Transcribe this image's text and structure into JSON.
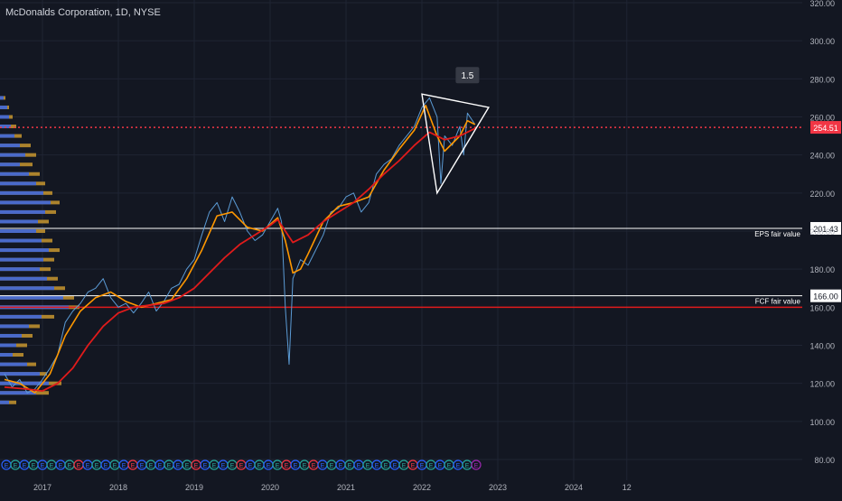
{
  "title": "McDonalds Corporation, 1D, NYSE",
  "colors": {
    "background": "#131722",
    "grid": "#1f2433",
    "axis_text": "#b2b5be",
    "price_series": "#5b9bd5",
    "ma_fast": "#ff9800",
    "ma_slow": "#e01b1b",
    "current_price": "#f23645",
    "ref_line": "#ffffff",
    "fcf_line": "#e01b1b",
    "volume_profile_blue": "#2962ff",
    "volume_profile_orange": "#c8962f"
  },
  "chart_data": {
    "type": "line",
    "ylim": [
      70,
      325
    ],
    "y_ticks": [
      "80.00",
      "100.00",
      "120.00",
      "140.00",
      "160.00",
      "180.00",
      "200.00",
      "220.00",
      "240.00",
      "260.00",
      "280.00",
      "300.00",
      "320.00"
    ],
    "x_ticks": [
      "2017",
      "2018",
      "2019",
      "2020",
      "2021",
      "2022",
      "2023",
      "2024",
      "12"
    ],
    "series": [
      {
        "id": "price",
        "x": [
          2016.5,
          2016.6,
          2016.7,
          2016.8,
          2016.9,
          2017.0,
          2017.1,
          2017.2,
          2017.3,
          2017.4,
          2017.5,
          2017.6,
          2017.7,
          2017.8,
          2017.9,
          2018.0,
          2018.1,
          2018.2,
          2018.3,
          2018.4,
          2018.5,
          2018.6,
          2018.7,
          2018.8,
          2018.9,
          2019.0,
          2019.1,
          2019.2,
          2019.3,
          2019.4,
          2019.5,
          2019.6,
          2019.7,
          2019.8,
          2019.9,
          2020.0,
          2020.1,
          2020.15,
          2020.2,
          2020.25,
          2020.3,
          2020.4,
          2020.5,
          2020.6,
          2020.7,
          2020.8,
          2020.9,
          2021.0,
          2021.1,
          2021.2,
          2021.3,
          2021.4,
          2021.5,
          2021.6,
          2021.7,
          2021.8,
          2021.9,
          2022.0,
          2022.1,
          2022.2,
          2022.25,
          2022.3,
          2022.4,
          2022.5,
          2022.55,
          2022.6,
          2022.7
        ],
        "y": [
          125,
          118,
          122,
          115,
          117,
          122,
          128,
          135,
          152,
          158,
          162,
          168,
          170,
          175,
          165,
          160,
          162,
          157,
          162,
          168,
          158,
          163,
          170,
          172,
          180,
          185,
          198,
          210,
          215,
          205,
          218,
          210,
          200,
          195,
          198,
          205,
          212,
          205,
          160,
          130,
          175,
          185,
          182,
          190,
          198,
          210,
          212,
          218,
          220,
          210,
          215,
          230,
          235,
          238,
          245,
          250,
          255,
          265,
          270,
          260,
          225,
          250,
          245,
          255,
          240,
          262,
          256
        ]
      },
      {
        "id": "ma_fast",
        "x": [
          2016.5,
          2016.7,
          2016.9,
          2017.1,
          2017.3,
          2017.5,
          2017.7,
          2017.9,
          2018.1,
          2018.3,
          2018.5,
          2018.7,
          2018.9,
          2019.1,
          2019.3,
          2019.5,
          2019.7,
          2019.9,
          2020.1,
          2020.2,
          2020.3,
          2020.4,
          2020.5,
          2020.7,
          2020.9,
          2021.1,
          2021.3,
          2021.5,
          2021.7,
          2021.9,
          2022.05,
          2022.2,
          2022.3,
          2022.4,
          2022.5,
          2022.6,
          2022.7
        ],
        "y": [
          122,
          120,
          115,
          125,
          145,
          158,
          165,
          168,
          163,
          160,
          162,
          164,
          175,
          190,
          208,
          210,
          202,
          200,
          207,
          195,
          178,
          180,
          188,
          205,
          213,
          215,
          218,
          232,
          243,
          253,
          266,
          250,
          242,
          246,
          250,
          258,
          256
        ]
      },
      {
        "id": "ma_slow",
        "x": [
          2016.5,
          2016.8,
          2017.0,
          2017.2,
          2017.4,
          2017.6,
          2017.8,
          2018.0,
          2018.2,
          2018.4,
          2018.6,
          2018.8,
          2019.0,
          2019.2,
          2019.4,
          2019.6,
          2019.8,
          2020.0,
          2020.1,
          2020.3,
          2020.5,
          2020.7,
          2020.9,
          2021.1,
          2021.3,
          2021.5,
          2021.7,
          2021.9,
          2022.1,
          2022.3,
          2022.5,
          2022.7
        ],
        "y": [
          118,
          117,
          116,
          120,
          128,
          140,
          150,
          157,
          160,
          161,
          162,
          165,
          170,
          178,
          186,
          193,
          198,
          203,
          206,
          194,
          198,
          205,
          210,
          215,
          222,
          230,
          237,
          245,
          252,
          248,
          250,
          254
        ]
      }
    ],
    "reference_lines": [
      {
        "value": 201.43,
        "label": "201.43",
        "annotation": "EPS fair value"
      },
      {
        "value": 166.0,
        "label": "166.00",
        "annotation": "FCF fair value"
      },
      {
        "value": 160,
        "label": "",
        "annotation": ""
      }
    ],
    "current_price": {
      "value": 254.51,
      "label": "254.51"
    },
    "triangle": {
      "points": [
        [
          2022.0,
          272
        ],
        [
          2022.88,
          265
        ],
        [
          2022.2,
          220
        ]
      ],
      "label": "1.5"
    }
  },
  "volume_profile": {
    "bins": [
      [
        270,
        6,
        4
      ],
      [
        265,
        10,
        8
      ],
      [
        260,
        14,
        10
      ],
      [
        255,
        18,
        12
      ],
      [
        250,
        24,
        16
      ],
      [
        245,
        34,
        22
      ],
      [
        240,
        40,
        28
      ],
      [
        235,
        36,
        22
      ],
      [
        230,
        44,
        32
      ],
      [
        225,
        50,
        40
      ],
      [
        220,
        58,
        48
      ],
      [
        215,
        66,
        56
      ],
      [
        210,
        62,
        50
      ],
      [
        205,
        54,
        42
      ],
      [
        200,
        50,
        40
      ],
      [
        195,
        58,
        46
      ],
      [
        190,
        66,
        54
      ],
      [
        185,
        60,
        48
      ],
      [
        180,
        56,
        44
      ],
      [
        175,
        64,
        52
      ],
      [
        170,
        72,
        60
      ],
      [
        165,
        82,
        70
      ],
      [
        160,
        88,
        76
      ],
      [
        155,
        60,
        46
      ],
      [
        150,
        44,
        32
      ],
      [
        145,
        36,
        24
      ],
      [
        140,
        30,
        18
      ],
      [
        135,
        26,
        14
      ],
      [
        130,
        40,
        30
      ],
      [
        125,
        52,
        44
      ],
      [
        120,
        68,
        54
      ],
      [
        115,
        54,
        40
      ],
      [
        110,
        18,
        10
      ]
    ]
  },
  "earnings_markers": {
    "labels": [
      "E",
      "E",
      "E",
      "E",
      "E",
      "E",
      "E",
      "E",
      "E",
      "E",
      "E",
      "E",
      "E",
      "E",
      "E",
      "E",
      "E",
      "E",
      "E",
      "E",
      "E",
      "E",
      "E",
      "E",
      "E",
      "E",
      "E",
      "E",
      "E",
      "E",
      "E",
      "E",
      "E",
      "E",
      "E",
      "E",
      "E",
      "E",
      "E",
      "E",
      "E",
      "E",
      "E",
      "E",
      "E",
      "E",
      "E",
      "E",
      "E",
      "E",
      "E",
      "E",
      "E"
    ],
    "kinds": [
      "blue",
      "green",
      "blue",
      "green",
      "blue",
      "green",
      "blue",
      "green",
      "red",
      "blue",
      "green",
      "blue",
      "green",
      "blue",
      "red",
      "blue",
      "green",
      "blue",
      "green",
      "blue",
      "green",
      "red",
      "blue",
      "green",
      "blue",
      "green",
      "red",
      "blue",
      "green",
      "blue",
      "green",
      "red",
      "blue",
      "green",
      "red",
      "blue",
      "green",
      "blue",
      "green",
      "blue",
      "green",
      "blue",
      "green",
      "blue",
      "green",
      "red",
      "blue",
      "green",
      "blue",
      "green",
      "blue",
      "green",
      "purple"
    ]
  }
}
